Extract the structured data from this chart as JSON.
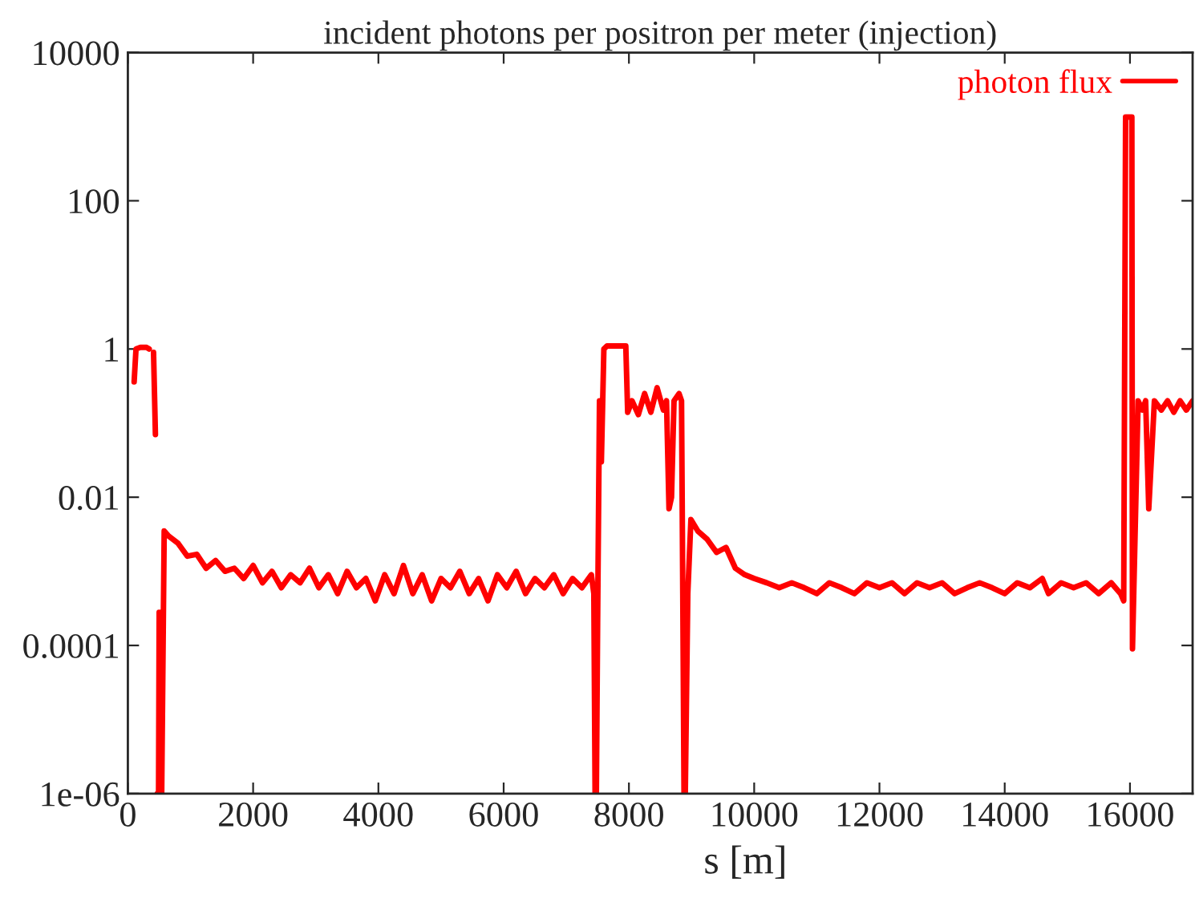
{
  "chart_data": {
    "type": "line",
    "title": "incident photons per positron per meter (injection)",
    "xlabel": "s [m]",
    "log": "y",
    "xlim": [
      0,
      17000
    ],
    "xticks": [
      0,
      2000,
      4000,
      6000,
      8000,
      10000,
      12000,
      14000,
      16000
    ],
    "ylim": [
      1e-06,
      10000
    ],
    "yticks": [
      {
        "value": 1e-06,
        "label": "1e-06"
      },
      0.0001,
      0.01,
      1,
      100,
      10000
    ],
    "grid": false,
    "legend": "top right",
    "line_style": "solid",
    "marker": "none",
    "series": [
      {
        "name": "photon flux",
        "color": "#ff0000",
        "x": [
          100,
          130,
          200,
          300,
          340,
          380,
          410,
          440,
          460,
          470,
          490,
          500,
          520,
          540,
          580,
          650,
          800,
          950,
          1100,
          1250,
          1400,
          1550,
          1700,
          1850,
          2000,
          2150,
          2300,
          2450,
          2600,
          2750,
          2900,
          3050,
          3200,
          3350,
          3500,
          3650,
          3800,
          3950,
          4100,
          4250,
          4400,
          4550,
          4700,
          4850,
          5000,
          5150,
          5300,
          5450,
          5600,
          5750,
          5900,
          6050,
          6200,
          6350,
          6500,
          6650,
          6800,
          6950,
          7100,
          7250,
          7400,
          7440,
          7460,
          7480,
          7500,
          7530,
          7560,
          7600,
          7650,
          7800,
          7950,
          7980,
          8050,
          8150,
          8250,
          8350,
          8450,
          8550,
          8600,
          8640,
          8680,
          8720,
          8800,
          8840,
          8860,
          8880,
          8900,
          8940,
          8990,
          9100,
          9250,
          9400,
          9550,
          9700,
          9850,
          10000,
          10200,
          10400,
          10600,
          10800,
          11000,
          11200,
          11400,
          11600,
          11800,
          12000,
          12200,
          12400,
          12600,
          12800,
          13000,
          13200,
          13400,
          13600,
          13800,
          14000,
          14200,
          14400,
          14600,
          14700,
          14900,
          15100,
          15300,
          15500,
          15700,
          15850,
          15900,
          15930,
          16030,
          16040,
          16130,
          16200,
          16250,
          16300,
          16390,
          16500,
          16600,
          16700,
          16800,
          16900,
          17000
        ],
        "values": [
          0.36,
          1.0,
          1.05,
          1.05,
          1.0,
          null,
          0.9,
          0.07,
          null,
          1e-06,
          1e-06,
          0.00028,
          1e-06,
          1e-06,
          0.0035,
          0.003,
          0.0024,
          0.0016,
          0.0017,
          0.0011,
          0.0014,
          0.001,
          0.0011,
          0.0008,
          0.0012,
          0.0007,
          0.001,
          0.0006,
          0.0009,
          0.0007,
          0.0011,
          0.0006,
          0.0009,
          0.0005,
          0.001,
          0.0006,
          0.0008,
          0.0004,
          0.0009,
          0.0005,
          0.0012,
          0.0005,
          0.0009,
          0.0004,
          0.0008,
          0.0006,
          0.001,
          0.0005,
          0.0008,
          0.0004,
          0.0009,
          0.0006,
          0.001,
          0.0005,
          0.0008,
          0.0006,
          0.0009,
          0.0005,
          0.0008,
          0.0006,
          0.0009,
          0.0005,
          1e-06,
          1e-06,
          0.0002,
          0.2,
          0.03,
          1.0,
          1.1,
          1.1,
          1.1,
          0.14,
          0.2,
          0.13,
          0.25,
          0.14,
          0.3,
          0.15,
          0.2,
          0.007,
          0.01,
          0.2,
          0.25,
          0.2,
          0.0005,
          1e-06,
          1e-06,
          0.0005,
          0.005,
          0.0035,
          0.0027,
          0.0018,
          0.0021,
          0.0011,
          0.0009,
          0.0008,
          0.0007,
          0.0006,
          0.0007,
          0.0006,
          0.0005,
          0.0007,
          0.0006,
          0.0005,
          0.0007,
          0.0006,
          0.0007,
          0.0005,
          0.0007,
          0.0006,
          0.0007,
          0.0005,
          0.0006,
          0.0007,
          0.0006,
          0.0005,
          0.0007,
          0.0006,
          0.0008,
          0.0005,
          0.0007,
          0.0006,
          0.0007,
          0.0005,
          0.0007,
          0.0005,
          0.0004,
          1350,
          1350,
          9e-05,
          0.2,
          0.15,
          0.2,
          0.007,
          0.2,
          0.15,
          0.2,
          0.14,
          0.2,
          0.15,
          0.2
        ]
      }
    ]
  }
}
